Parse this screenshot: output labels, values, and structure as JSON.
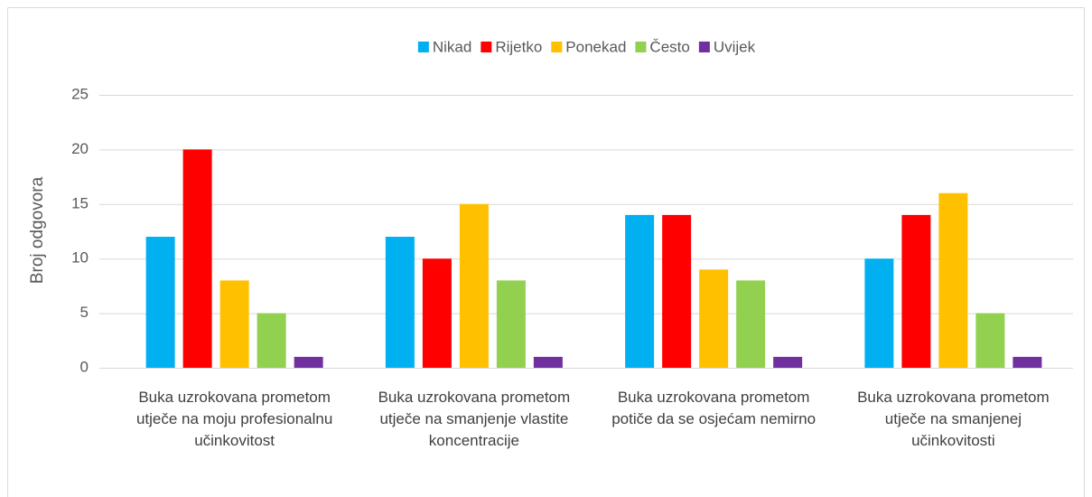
{
  "chart_data": {
    "type": "bar",
    "ylabel": "Broj odgovora",
    "categories": [
      "Buka uzrokovana prometom utječe na moju profesionalnu učinkovitost",
      "Buka uzrokovana prometom utječe na smanjenje vlastite koncentracije",
      "Buka uzrokovana prometom potiče da se osjećam nemirno",
      "Buka uzrokovana prometom utječe na smanjenej učinkovitosti"
    ],
    "series": [
      {
        "name": "Nikad",
        "color": "#00b0f0",
        "values": [
          12,
          12,
          14,
          10
        ]
      },
      {
        "name": "Rijetko",
        "color": "#ff0000",
        "values": [
          20,
          10,
          14,
          14
        ]
      },
      {
        "name": "Ponekad",
        "color": "#ffc000",
        "values": [
          8,
          15,
          9,
          16
        ]
      },
      {
        "name": "Često",
        "color": "#92d050",
        "values": [
          5,
          8,
          8,
          5
        ]
      },
      {
        "name": "Uvijek",
        "color": "#7030a0",
        "values": [
          1,
          1,
          1,
          1
        ]
      }
    ],
    "ylim": [
      0,
      25
    ],
    "yticks": [
      0,
      5,
      10,
      15,
      20,
      25
    ],
    "grid": true,
    "legend": "top"
  }
}
